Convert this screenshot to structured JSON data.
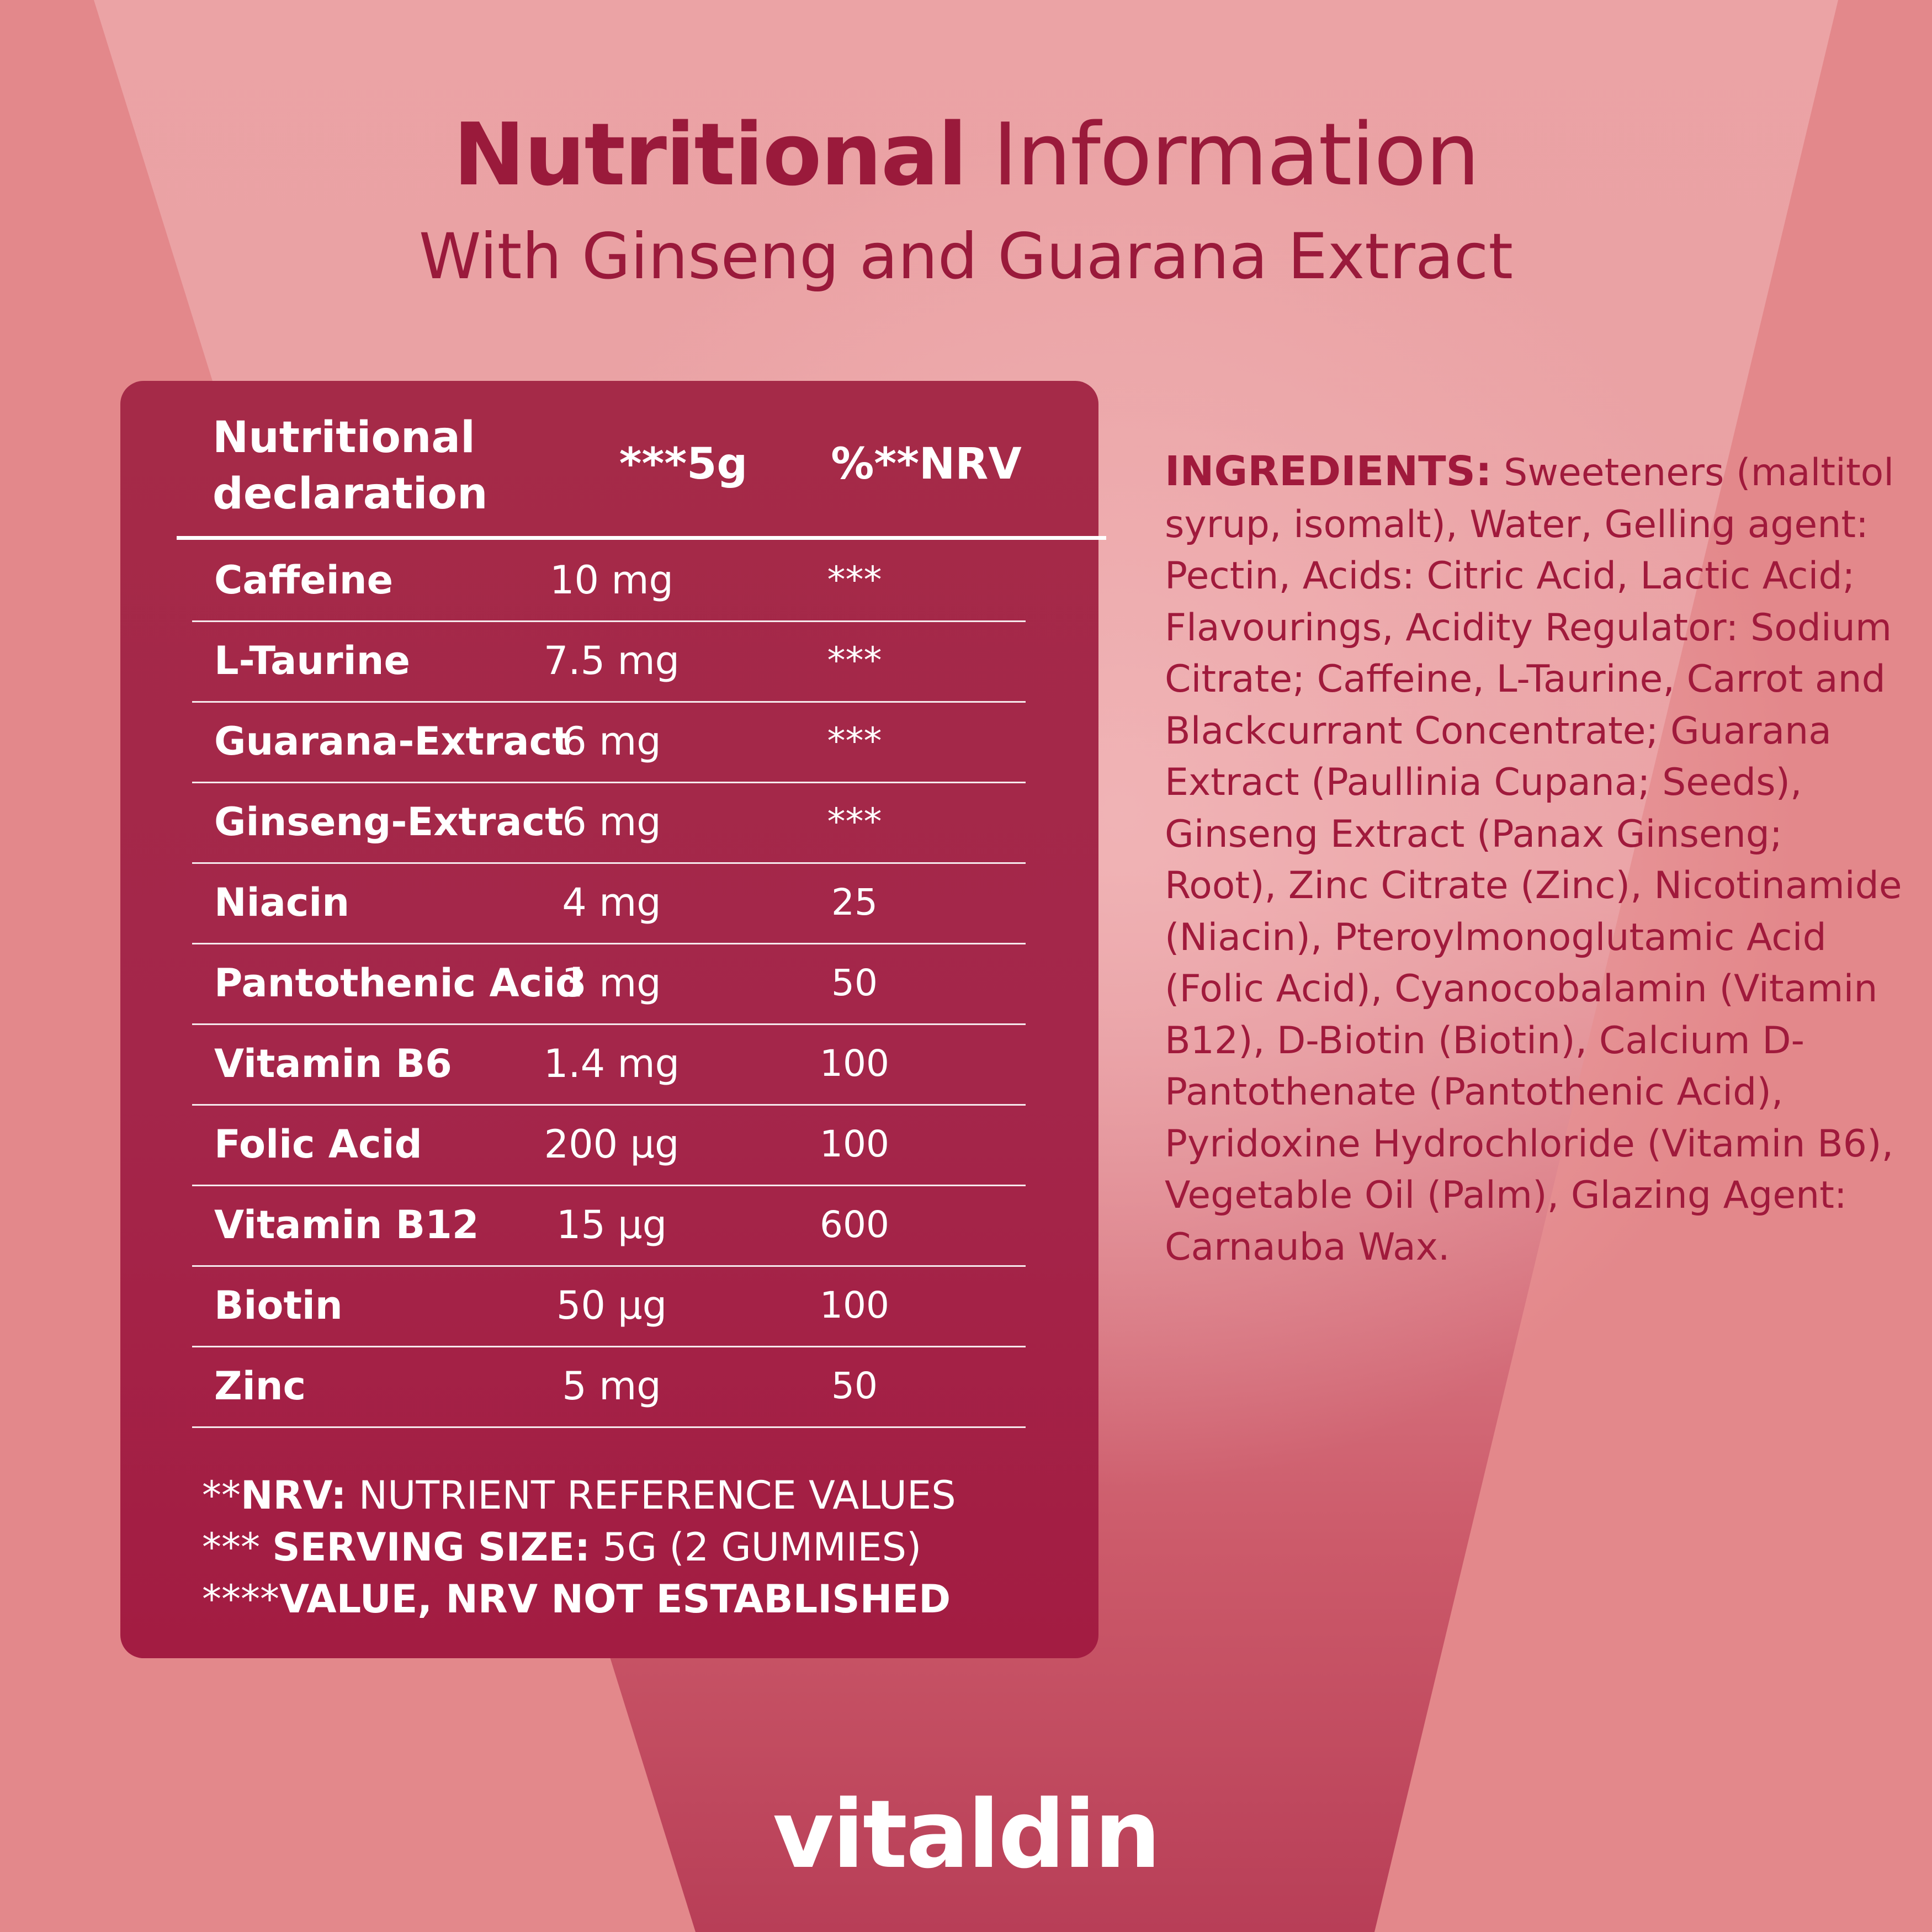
{
  "header": {
    "title_bold": "Nutritional",
    "title_light": "Information",
    "subtitle": "With Ginseng and Guarana Extract"
  },
  "table": {
    "col_name": "Nutritional declaration",
    "col_amount": "***5g",
    "col_nrv": "%**NRV",
    "rows": [
      {
        "name": "Caffeine",
        "amount": "10 mg",
        "nrv": "***"
      },
      {
        "name": "L-Taurine",
        "amount": "7.5 mg",
        "nrv": "***"
      },
      {
        "name": "Guarana-Extract",
        "amount": "6 mg",
        "nrv": "***"
      },
      {
        "name": "Ginseng-Extract",
        "amount": "6 mg",
        "nrv": "***"
      },
      {
        "name": "Niacin",
        "amount": "4 mg",
        "nrv": "25"
      },
      {
        "name": "Pantothenic Acid",
        "amount": "3 mg",
        "nrv": "50"
      },
      {
        "name": "Vitamin B6",
        "amount": "1.4 mg",
        "nrv": "100"
      },
      {
        "name": "Folic Acid",
        "amount": "200 µg",
        "nrv": "100"
      },
      {
        "name": "Vitamin B12",
        "amount": "15 µg",
        "nrv": "600"
      },
      {
        "name": "Biotin",
        "amount": "50 µg",
        "nrv": "100"
      },
      {
        "name": "Zinc",
        "amount": "5 mg",
        "nrv": "50"
      }
    ],
    "footnotes": [
      {
        "prefix": "**",
        "bold": "NRV:",
        "text": " NUTRIENT REFERENCE VALUES"
      },
      {
        "prefix": "*** ",
        "bold": "SERVING SIZE:",
        "text": " 5G (2 GUMMIES)"
      },
      {
        "prefix": "****",
        "bold": "VALUE, NRV NOT ESTABLISHED",
        "text": ""
      }
    ]
  },
  "ingredients": {
    "label": "INGREDIENTS:",
    "text": "Sweeteners (maltitol syrup, isomalt), Water, Gelling agent: Pectin, Acids: Citric Acid, Lactic Acid; Flavourings, Acidity Regulator: Sodium Citrate; Caffeine, L-Taurine, Carrot and Blackcurrant Concentrate; Guarana Extract (Paullinia Cupana; Seeds), Ginseng Extract (Panax Ginseng; Root), Zinc Citrate (Zinc), Nicotinamide (Niacin), Pteroylmonoglutamic Acid (Folic Acid), Cyanocobalamin (Vitamin B12), D-Biotin (Biotin), Calcium D-Pantothenate (Pantothenic Acid), Pyridoxine Hydrochloride (Vitamin B6), Vegetable Oil (Palm), Glazing Agent: Carnauba Wax."
  },
  "brand": {
    "logo_text": "vitaldin"
  },
  "colors": {
    "background": "#e3888b",
    "card": "#a4264a",
    "accent_text": "#9a1a3b"
  }
}
